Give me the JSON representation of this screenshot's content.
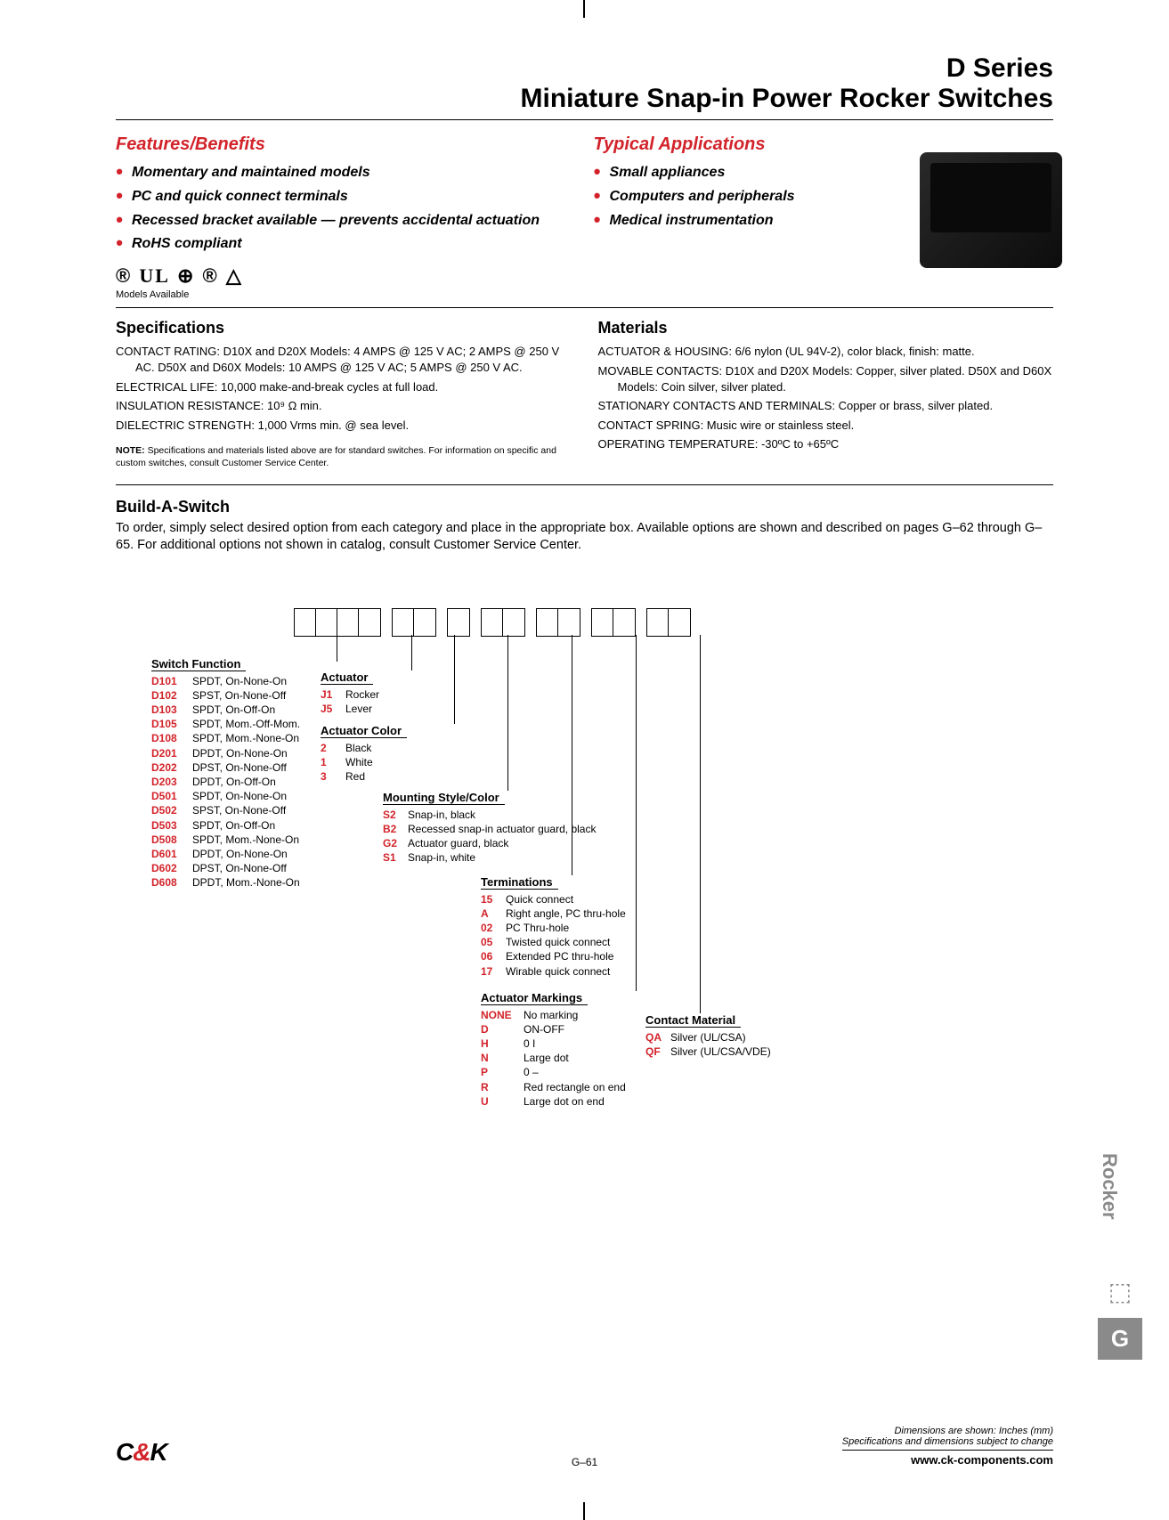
{
  "colors": {
    "accent_red": "#d2232a",
    "text": "#000000",
    "side_gray": "#8a8a8a",
    "bg": "#ffffff"
  },
  "header": {
    "series": "D Series",
    "title": "Miniature Snap-in Power Rocker Switches"
  },
  "features": {
    "heading": "Features/Benefits",
    "items": [
      "Momentary and maintained models",
      "PC and quick connect terminals",
      "Recessed bracket available — prevents accidental actuation",
      "RoHS compliant"
    ]
  },
  "applications": {
    "heading": "Typical Applications",
    "items": [
      "Small appliances",
      "Computers and peripherals",
      "Medical instrumentation"
    ]
  },
  "certifications": {
    "label": "Models Available"
  },
  "specifications": {
    "heading": "Specifications",
    "items": [
      "CONTACT RATING: D10X and D20X Models: 4 AMPS @ 125 V AC; 2 AMPS @ 250 V AC. D50X and D60X Models: 10 AMPS @ 125 V AC; 5 AMPS @ 250 V AC.",
      "ELECTRICAL LIFE: 10,000 make-and-break cycles at full load.",
      "INSULATION RESISTANCE: 10⁹ Ω min.",
      "DIELECTRIC STRENGTH: 1,000 Vrms min. @ sea level."
    ]
  },
  "materials": {
    "heading": "Materials",
    "items": [
      "ACTUATOR & HOUSING: 6/6 nylon (UL 94V-2), color black, finish: matte.",
      "MOVABLE CONTACTS: D10X and D20X Models: Copper, silver plated. D50X and D60X Models: Coin silver, silver plated.",
      "STATIONARY CONTACTS AND TERMINALS: Copper or brass, silver plated.",
      "CONTACT SPRING: Music wire or stainless steel.",
      "OPERATING TEMPERATURE: -30ºC to +65ºC"
    ]
  },
  "note": {
    "bold": "NOTE:",
    "text": "Specifications and materials listed above are for standard switches. For information on specific and custom switches, consult Customer Service Center."
  },
  "buildASwitch": {
    "heading": "Build-A-Switch",
    "intro": "To order, simply select desired option from each category and place in the appropriate box. Available options are shown and described on pages G–62 through G–65. For additional options not shown in catalog, consult Customer Service Center.",
    "boxGroups": [
      4,
      2,
      1,
      2,
      2,
      2,
      2
    ],
    "categories": {
      "switchFunction": {
        "title": "Switch Function",
        "rows": [
          {
            "code": "D101",
            "desc": "SPDT, On-None-On"
          },
          {
            "code": "D102",
            "desc": "SPST, On-None-Off"
          },
          {
            "code": "D103",
            "desc": "SPDT, On-Off-On"
          },
          {
            "code": "D105",
            "desc": "SPDT, Mom.-Off-Mom."
          },
          {
            "code": "D108",
            "desc": "SPDT, Mom.-None-On"
          },
          {
            "code": "D201",
            "desc": "DPDT, On-None-On"
          },
          {
            "code": "D202",
            "desc": "DPST, On-None-Off"
          },
          {
            "code": "D203",
            "desc": "DPDT, On-Off-On"
          },
          {
            "code": "D501",
            "desc": "SPDT, On-None-On"
          },
          {
            "code": "D502",
            "desc": "SPST, On-None-Off"
          },
          {
            "code": "D503",
            "desc": "SPDT, On-Off-On"
          },
          {
            "code": "D508",
            "desc": "SPDT, Mom.-None-On"
          },
          {
            "code": "D601",
            "desc": "DPDT, On-None-On"
          },
          {
            "code": "D602",
            "desc": "DPST, On-None-Off"
          },
          {
            "code": "D608",
            "desc": "DPDT, Mom.-None-On"
          }
        ]
      },
      "actuator": {
        "title": "Actuator",
        "rows": [
          {
            "code": "J1",
            "desc": "Rocker"
          },
          {
            "code": "J5",
            "desc": "Lever"
          }
        ]
      },
      "actuatorColor": {
        "title": "Actuator Color",
        "rows": [
          {
            "code": "2",
            "desc": "Black"
          },
          {
            "code": "1",
            "desc": "White"
          },
          {
            "code": "3",
            "desc": "Red"
          }
        ]
      },
      "mountingStyle": {
        "title": "Mounting Style/Color",
        "rows": [
          {
            "code": "S2",
            "desc": "Snap-in, black"
          },
          {
            "code": "B2",
            "desc": "Recessed snap-in actuator guard, black"
          },
          {
            "code": "G2",
            "desc": "Actuator guard, black"
          },
          {
            "code": "S1",
            "desc": "Snap-in, white"
          }
        ]
      },
      "terminations": {
        "title": "Terminations",
        "rows": [
          {
            "code": "15",
            "desc": "Quick connect"
          },
          {
            "code": "A",
            "desc": "Right angle, PC thru-hole"
          },
          {
            "code": "02",
            "desc": "PC Thru-hole"
          },
          {
            "code": "05",
            "desc": "Twisted quick connect"
          },
          {
            "code": "06",
            "desc": "Extended PC thru-hole"
          },
          {
            "code": "17",
            "desc": "Wirable quick connect"
          }
        ]
      },
      "actuatorMarkings": {
        "title": "Actuator Markings",
        "rows": [
          {
            "code": "NONE",
            "desc": "No marking"
          },
          {
            "code": "D",
            "desc": "ON-OFF"
          },
          {
            "code": "H",
            "desc": "0 I"
          },
          {
            "code": "N",
            "desc": "Large dot"
          },
          {
            "code": "P",
            "desc": "0 –"
          },
          {
            "code": "R",
            "desc": "Red rectangle on end"
          },
          {
            "code": "U",
            "desc": "Large dot on end"
          }
        ]
      },
      "contactMaterial": {
        "title": "Contact Material",
        "rows": [
          {
            "code": "QA",
            "desc": "Silver (UL/CSA)"
          },
          {
            "code": "QF",
            "desc": "Silver (UL/CSA/VDE)"
          }
        ]
      }
    }
  },
  "footer": {
    "logo_c": "C",
    "logo_amp": "&",
    "logo_k": "K",
    "dim_note": "Dimensions are shown: Inches (mm)",
    "spec_note": "Specifications and dimensions subject to change",
    "url": "www.ck-components.com",
    "page": "G–61"
  },
  "sideTab": {
    "label": "Rocker",
    "letter": "G"
  }
}
